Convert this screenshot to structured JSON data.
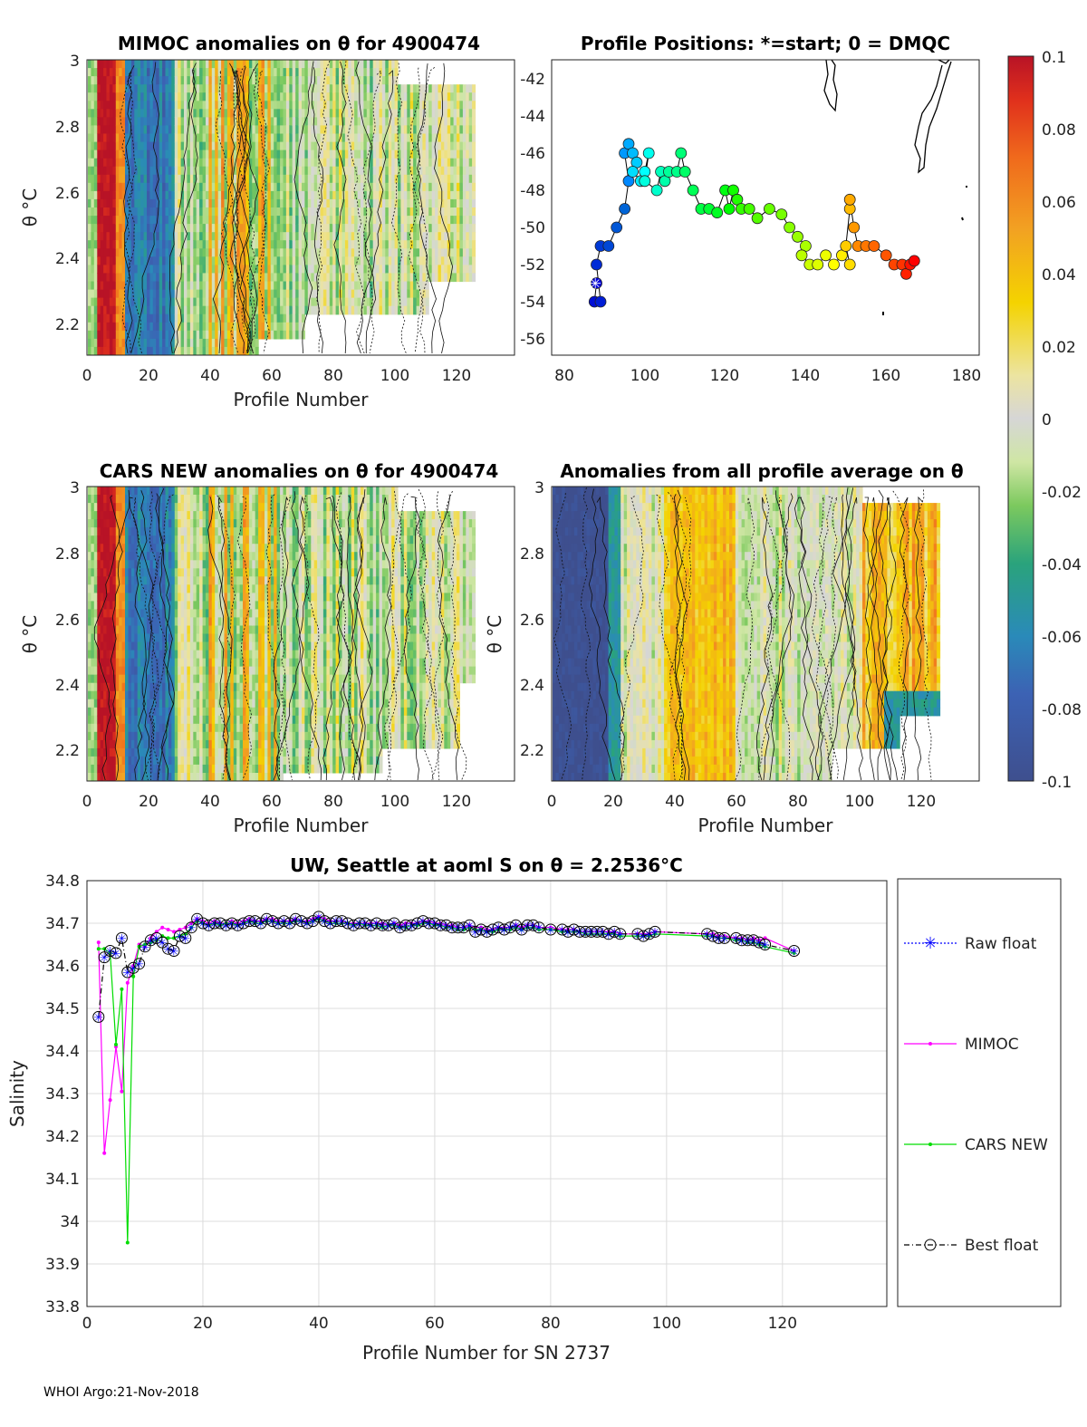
{
  "footer": "WHOI Argo:21-Nov-2018",
  "colorbar": {
    "ticks": [
      "0.1",
      "0.08",
      "0.06",
      "0.04",
      "0.02",
      "0",
      "-0.02",
      "-0.04",
      "-0.06",
      "-0.08",
      "-0.1"
    ],
    "min": -0.1,
    "max": 0.1
  },
  "panels": {
    "mimoc": {
      "title": "MIMOC anomalies on θ  for 4900474",
      "xlabel": "Profile Number",
      "ylabel": "θ °C",
      "xticks": [
        "0",
        "20",
        "40",
        "60",
        "80",
        "100",
        "120"
      ],
      "yticks": [
        "3",
        "2.8",
        "2.6",
        "2.4",
        "2.2"
      ]
    },
    "positions": {
      "title": "Profile Positions: *=start; 0 = DMQC",
      "xticks": [
        "80",
        "100",
        "120",
        "140",
        "160",
        "180"
      ],
      "yticks": [
        "-42",
        "-44",
        "-46",
        "-48",
        "-50",
        "-52",
        "-54",
        "-56"
      ]
    },
    "cars": {
      "title": "CARS NEW anomalies on θ for 4900474",
      "xlabel": "Profile Number",
      "ylabel": "θ °C",
      "xticks": [
        "0",
        "20",
        "40",
        "60",
        "80",
        "100",
        "120"
      ],
      "yticks": [
        "3",
        "2.8",
        "2.6",
        "2.4",
        "2.2"
      ]
    },
    "average": {
      "title": "Anomalies from all profile average on θ",
      "xlabel": "Profile Number",
      "ylabel": "θ °C",
      "xticks": [
        "0",
        "20",
        "40",
        "60",
        "80",
        "100",
        "120"
      ],
      "yticks": [
        "3",
        "2.8",
        "2.6",
        "2.4",
        "2.2"
      ]
    }
  },
  "chart_data": {
    "type": "line",
    "title": "UW, Seattle at aoml S on θ = 2.2536°C",
    "xlabel": "Profile Number for SN 2737",
    "ylabel": "Salinity",
    "xlim": [
      0,
      138
    ],
    "ylim": [
      33.8,
      34.8
    ],
    "xticks": [
      "0",
      "20",
      "40",
      "60",
      "80",
      "100",
      "120"
    ],
    "yticks": [
      "34.8",
      "34.7",
      "34.6",
      "34.5",
      "34.4",
      "34.3",
      "34.2",
      "34.1",
      "34",
      "33.9",
      "33.8"
    ],
    "legend": [
      "Raw float",
      "MIMOC",
      "CARS NEW",
      "Best float"
    ],
    "colors": {
      "raw": "#0000ff",
      "mimoc": "#ff00ff",
      "cars": "#00dd00",
      "best": "#000000"
    },
    "x": [
      2,
      3,
      4,
      5,
      6,
      7,
      8,
      9,
      10,
      11,
      12,
      13,
      14,
      15,
      16,
      17,
      18,
      19,
      20,
      21,
      22,
      23,
      24,
      25,
      26,
      27,
      28,
      29,
      30,
      31,
      32,
      33,
      34,
      35,
      36,
      37,
      38,
      39,
      40,
      41,
      42,
      43,
      44,
      45,
      46,
      47,
      48,
      49,
      50,
      51,
      52,
      53,
      54,
      55,
      56,
      57,
      58,
      59,
      60,
      61,
      62,
      63,
      64,
      65,
      66,
      67,
      68,
      69,
      70,
      71,
      72,
      73,
      74,
      75,
      76,
      77,
      78,
      80,
      82,
      83,
      84,
      85,
      86,
      87,
      88,
      89,
      90,
      91,
      92,
      95,
      96,
      97,
      98,
      107,
      108,
      109,
      110,
      112,
      113,
      114,
      115,
      116,
      117,
      122
    ],
    "series": [
      {
        "name": "Best float",
        "values": [
          34.48,
          34.62,
          34.635,
          34.63,
          34.665,
          34.585,
          34.595,
          34.605,
          34.645,
          34.66,
          34.665,
          34.655,
          34.64,
          34.635,
          34.67,
          34.665,
          34.69,
          34.71,
          34.7,
          34.695,
          34.7,
          34.7,
          34.695,
          34.7,
          34.695,
          34.7,
          34.705,
          34.705,
          34.7,
          34.71,
          34.705,
          34.7,
          34.705,
          34.7,
          34.71,
          34.705,
          34.7,
          34.705,
          34.715,
          34.705,
          34.7,
          34.705,
          34.705,
          34.7,
          34.695,
          34.7,
          34.7,
          34.695,
          34.7,
          34.695,
          34.695,
          34.7,
          34.69,
          34.695,
          34.695,
          34.7,
          34.705,
          34.7,
          34.7,
          34.695,
          34.695,
          34.69,
          34.69,
          34.69,
          34.695,
          34.68,
          34.685,
          34.68,
          34.685,
          34.69,
          34.685,
          34.69,
          34.695,
          34.685,
          34.695,
          34.695,
          34.69,
          34.685,
          34.685,
          34.68,
          34.685,
          34.68,
          34.68,
          34.68,
          34.68,
          34.68,
          34.675,
          34.68,
          34.675,
          34.675,
          34.67,
          34.675,
          34.68,
          34.675,
          34.67,
          34.665,
          34.665,
          34.665,
          34.66,
          34.66,
          34.66,
          34.655,
          34.65,
          34.635
        ]
      },
      {
        "name": "MIMOC",
        "values": [
          34.655,
          34.16,
          34.285,
          34.41,
          34.305,
          34.56,
          34.6,
          34.65,
          34.645,
          34.665,
          34.68,
          34.69,
          34.685,
          34.68,
          34.685,
          34.69,
          34.7,
          34.71,
          34.705,
          34.7,
          34.705,
          34.7,
          34.7,
          34.705,
          34.7,
          34.705,
          34.71,
          34.705,
          34.705,
          34.71,
          34.71,
          34.705,
          34.705,
          34.705,
          34.71,
          34.705,
          34.705,
          34.71,
          34.715,
          34.71,
          34.705,
          34.705,
          34.705,
          34.7,
          34.7,
          34.7,
          34.7,
          34.7,
          34.7,
          34.7,
          34.695,
          34.7,
          34.695,
          34.7,
          34.7,
          34.7,
          34.705,
          34.705,
          34.7,
          34.7,
          34.695,
          34.695,
          34.69,
          34.69,
          34.695,
          34.69,
          34.69,
          34.685,
          34.685,
          34.69,
          34.69,
          34.69,
          34.695,
          34.69,
          34.695,
          34.695,
          34.69,
          34.69,
          34.685,
          34.685,
          34.685,
          34.68,
          34.68,
          34.68,
          34.68,
          34.68,
          34.68,
          34.68,
          34.675,
          34.675,
          34.675,
          34.675,
          34.68,
          34.675,
          34.675,
          34.67,
          34.67,
          34.665,
          34.665,
          34.66,
          34.665,
          34.66,
          34.665,
          34.635
        ]
      },
      {
        "name": "CARS NEW",
        "values": [
          34.64,
          34.64,
          34.63,
          34.415,
          34.545,
          33.95,
          34.575,
          34.645,
          34.65,
          34.655,
          34.66,
          34.67,
          34.665,
          34.665,
          34.67,
          34.675,
          34.69,
          34.705,
          34.7,
          34.695,
          34.7,
          34.695,
          34.7,
          34.7,
          34.695,
          34.7,
          34.705,
          34.7,
          34.7,
          34.705,
          34.705,
          34.7,
          34.7,
          34.7,
          34.705,
          34.705,
          34.7,
          34.705,
          34.71,
          34.705,
          34.7,
          34.7,
          34.7,
          34.7,
          34.695,
          34.7,
          34.695,
          34.695,
          34.695,
          34.69,
          34.695,
          34.695,
          34.69,
          34.69,
          34.695,
          34.695,
          34.7,
          34.7,
          34.695,
          34.695,
          34.69,
          34.69,
          34.685,
          34.685,
          34.69,
          34.685,
          34.685,
          34.68,
          34.68,
          34.685,
          34.685,
          34.685,
          34.69,
          34.685,
          34.69,
          34.69,
          34.685,
          34.685,
          34.68,
          34.68,
          34.68,
          34.68,
          34.675,
          34.675,
          34.675,
          34.675,
          34.675,
          34.675,
          34.67,
          34.67,
          34.67,
          34.67,
          34.675,
          34.67,
          34.67,
          34.665,
          34.665,
          34.66,
          34.66,
          34.655,
          34.655,
          34.65,
          34.645,
          34.63
        ]
      }
    ]
  }
}
